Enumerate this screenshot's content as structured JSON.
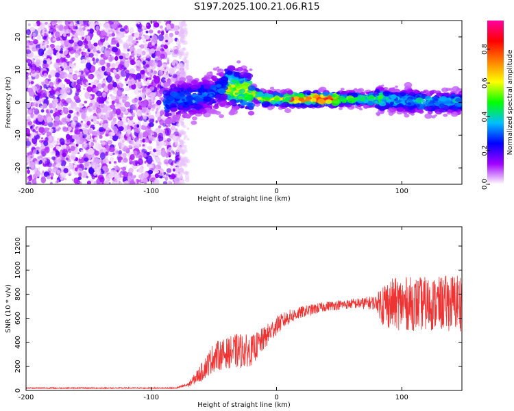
{
  "title": "S197.2025.100.21.06.R15",
  "chart_data": [
    {
      "type": "heatmap",
      "xlabel": "Height of straight line (km)",
      "ylabel": "Frequency (Hz)",
      "xlim": [
        -200,
        148
      ],
      "ylim": [
        -25,
        25
      ],
      "xticks": [
        -200,
        -100,
        0,
        100
      ],
      "yticks": [
        -20,
        -10,
        0,
        10,
        20
      ],
      "colorbar": {
        "label": "Normalized spectral amplitude",
        "range": [
          0,
          0.97
        ],
        "ticks": [
          0.0,
          0.2,
          0.4,
          0.6,
          0.8
        ],
        "colormap": [
          "#ffffff",
          "#a000ff",
          "#0000ff",
          "#00c0ff",
          "#00ff00",
          "#ffff00",
          "#ff8000",
          "#ff0000",
          "#ff00a0"
        ]
      },
      "ridge_center_hz": [
        {
          "x": -85,
          "y": 1
        },
        {
          "x": -70,
          "y": 1
        },
        {
          "x": -60,
          "y": 2
        },
        {
          "x": -50,
          "y": 3
        },
        {
          "x": -40,
          "y": 5
        },
        {
          "x": -30,
          "y": 4
        },
        {
          "x": -20,
          "y": 3
        },
        {
          "x": -10,
          "y": 1
        },
        {
          "x": 0,
          "y": 1
        },
        {
          "x": 20,
          "y": 1
        },
        {
          "x": 50,
          "y": 1
        },
        {
          "x": 80,
          "y": 1
        },
        {
          "x": 100,
          "y": 0.5
        },
        {
          "x": 130,
          "y": 0
        },
        {
          "x": 148,
          "y": 0
        }
      ]
    },
    {
      "type": "line",
      "xlabel": "Height of straight line (km)",
      "ylabel": "SNR (10 * v/v)",
      "xlim": [
        -200,
        148
      ],
      "ylim": [
        0,
        1360
      ],
      "xticks": [
        -200,
        -100,
        0,
        100
      ],
      "yticks": [
        0,
        200,
        400,
        600,
        800,
        1000,
        1200
      ],
      "color": "#ee3333",
      "envelope": [
        {
          "x": -200,
          "mean": 20,
          "spread": 10
        },
        {
          "x": -80,
          "mean": 20,
          "spread": 10
        },
        {
          "x": -70,
          "mean": 50,
          "spread": 40
        },
        {
          "x": -60,
          "mean": 150,
          "spread": 150
        },
        {
          "x": -50,
          "mean": 280,
          "spread": 250
        },
        {
          "x": -40,
          "mean": 310,
          "spread": 250
        },
        {
          "x": -30,
          "mean": 330,
          "spread": 300
        },
        {
          "x": -20,
          "mean": 330,
          "spread": 250
        },
        {
          "x": -10,
          "mean": 430,
          "spread": 200
        },
        {
          "x": 0,
          "mean": 540,
          "spread": 160
        },
        {
          "x": 10,
          "mean": 610,
          "spread": 120
        },
        {
          "x": 20,
          "mean": 650,
          "spread": 100
        },
        {
          "x": 40,
          "mean": 700,
          "spread": 80
        },
        {
          "x": 60,
          "mean": 720,
          "spread": 80
        },
        {
          "x": 80,
          "mean": 730,
          "spread": 120
        },
        {
          "x": 85,
          "mean": 720,
          "spread": 400
        },
        {
          "x": 100,
          "mean": 720,
          "spread": 450
        },
        {
          "x": 130,
          "mean": 720,
          "spread": 450
        },
        {
          "x": 148,
          "mean": 740,
          "spread": 500
        }
      ]
    }
  ]
}
